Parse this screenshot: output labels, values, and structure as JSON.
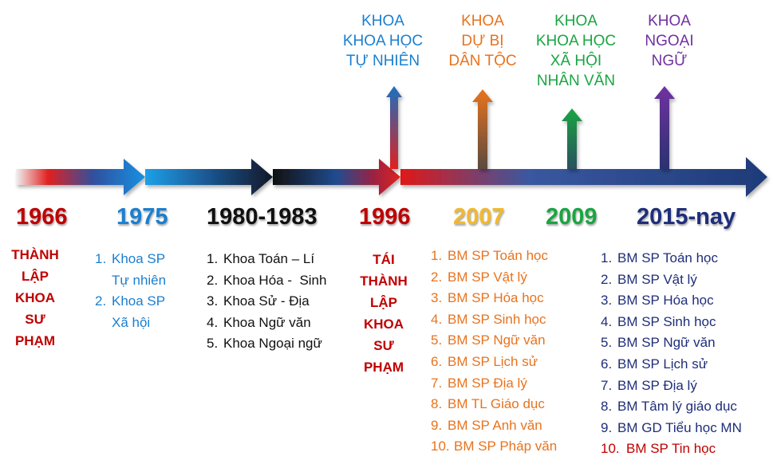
{
  "colors": {
    "red": "#c00000",
    "dark_red": "#b01010",
    "blue": "#1a7fd0",
    "black": "#111111",
    "orange": "#e8731e",
    "green": "#1aa542",
    "purple": "#7030a0",
    "navy": "#1f2e7a",
    "gold": "#f2b92d"
  },
  "top_labels": {
    "khtn": [
      "KHOA",
      "KHOA HỌC",
      "TỰ NHIÊN"
    ],
    "dbdt": [
      "KHOA",
      "DỰ BỊ",
      "DÂN TỘC"
    ],
    "khxh": [
      "KHOA",
      "KHOA HỌC",
      "XÃ HỘI",
      "NHÂN VĂN"
    ],
    "nn": [
      "KHOA",
      "NGOẠI",
      "NGỮ"
    ]
  },
  "years": {
    "y1966": "1966",
    "y1975": "1975",
    "y1980": "1980-1983",
    "y1996": "1996",
    "y2007": "2007",
    "y2009": "2009",
    "y2015": "2015-nay"
  },
  "events": {
    "e1966": [
      "THÀNH",
      "LẬP",
      "KHOA",
      "SƯ",
      "PHẠM"
    ],
    "e1996": [
      "TÁI",
      "THÀNH",
      "LẬP",
      "KHOA",
      "SƯ",
      "PHẠM"
    ]
  },
  "list_1975": [
    {
      "num": "1.",
      "text": "Khoa SP",
      "cont": "Tự nhiên"
    },
    {
      "num": "2.",
      "text": "Khoa SP",
      "cont": "Xã hội"
    }
  ],
  "list_1980": [
    {
      "num": "1.",
      "text": "Khoa Toán – Lí"
    },
    {
      "num": "2.",
      "text": "Khoa Hóa -  Sinh"
    },
    {
      "num": "3.",
      "text": "Khoa Sử - Địa"
    },
    {
      "num": "4.",
      "text": "Khoa Ngữ văn"
    },
    {
      "num": "5.",
      "text": "Khoa Ngoại ngữ"
    }
  ],
  "list_2007": [
    {
      "num": "1.",
      "text": "BM SP Toán học"
    },
    {
      "num": "2.",
      "text": "BM SP Vật lý"
    },
    {
      "num": "3.",
      "text": "BM SP Hóa học"
    },
    {
      "num": "4.",
      "text": "BM SP Sinh học"
    },
    {
      "num": "5.",
      "text": "BM SP Ngữ văn"
    },
    {
      "num": "6.",
      "text": "BM SP Lịch sử"
    },
    {
      "num": "7.",
      "text": "BM SP Địa lý"
    },
    {
      "num": "8.",
      "text": "BM TL Giáo dục"
    },
    {
      "num": "9.",
      "text": "BM SP Anh văn"
    },
    {
      "num": "10.",
      "text": "BM SP Pháp văn"
    }
  ],
  "list_2015": [
    {
      "num": "1.",
      "text": "BM SP Toán học"
    },
    {
      "num": "2.",
      "text": "BM SP Vật lý"
    },
    {
      "num": "3.",
      "text": "BM SP Hóa học"
    },
    {
      "num": "4.",
      "text": "BM SP Sinh học"
    },
    {
      "num": "5.",
      "text": "BM SP Ngữ văn"
    },
    {
      "num": "6.",
      "text": "BM SP Lịch sử"
    },
    {
      "num": "7.",
      "text": "BM SP Địa lý"
    },
    {
      "num": "8.",
      "text": "BM Tâm lý giáo dục"
    },
    {
      "num": "9.",
      "text": "BM GD Tiểu học MN"
    },
    {
      "num": "10.",
      "text": "BM SP Tin học"
    }
  ]
}
